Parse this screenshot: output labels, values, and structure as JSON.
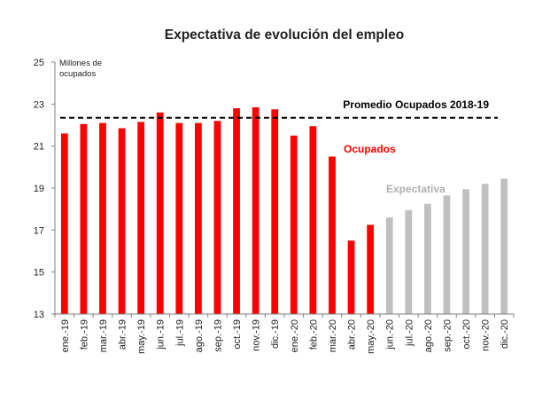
{
  "chart_data": {
    "type": "bar",
    "title": "Expectativa de evolución del empleo",
    "ylabel_line1": "Millones de",
    "ylabel_line2": "ocupados",
    "ylim": [
      13,
      25
    ],
    "yticks": [
      "13",
      "15",
      "17",
      "19",
      "21",
      "23",
      "25"
    ],
    "grid": false,
    "categories": [
      "ene.-19",
      "feb.-19",
      "mar.-19",
      "abr.-19",
      "may.-19",
      "jun.-19",
      "jul.-19",
      "ago.-19",
      "sep.-19",
      "oct.-19",
      "nov.-19",
      "dic.-19",
      "ene.-20",
      "feb.-20",
      "mar.-20",
      "abr.-20",
      "may.-20",
      "jun.-20",
      "jul.-20",
      "ago.-20",
      "sep.-20",
      "oct.-20",
      "nov.-20",
      "dic.-20"
    ],
    "series": [
      {
        "name": "Ocupados",
        "color": "#ff0000",
        "values": [
          21.6,
          22.05,
          22.1,
          21.85,
          22.15,
          22.6,
          22.1,
          22.1,
          22.2,
          22.8,
          22.85,
          22.75,
          21.5,
          21.95,
          20.5,
          16.5,
          17.25,
          null,
          null,
          null,
          null,
          null,
          null,
          null
        ]
      },
      {
        "name": "Expectativa",
        "color": "#c0c0c0",
        "values": [
          null,
          null,
          null,
          null,
          null,
          null,
          null,
          null,
          null,
          null,
          null,
          null,
          null,
          null,
          null,
          null,
          null,
          17.6,
          17.95,
          18.25,
          18.65,
          18.95,
          19.2,
          19.45
        ]
      }
    ],
    "reference_line": {
      "name": "Promedio Ocupados 2018-19",
      "value": 22.35,
      "color": "#000000"
    }
  }
}
